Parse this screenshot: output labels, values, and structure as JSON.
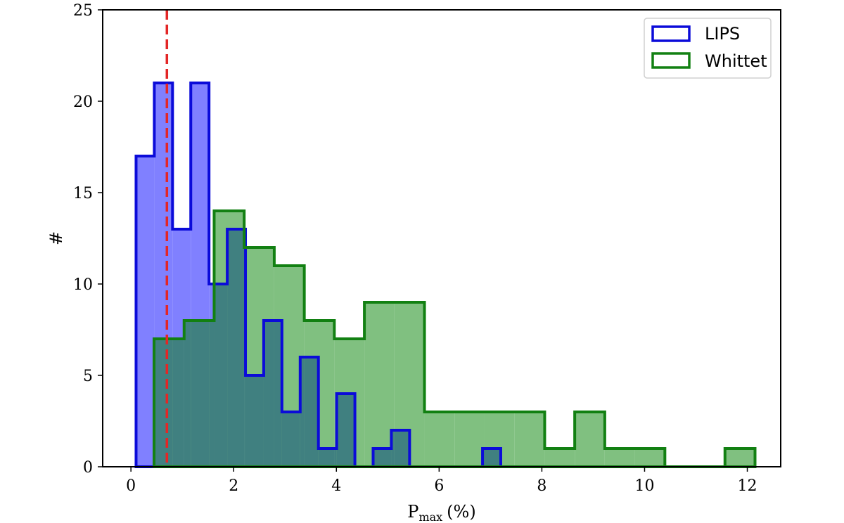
{
  "chart_data": {
    "type": "histogram",
    "xlabel": "P",
    "xlabel_sub": "max",
    "xlabel_unit": "(%)",
    "ylabel": "#",
    "xlim": [
      -0.55,
      12.65
    ],
    "ylim": [
      0,
      25
    ],
    "xticks": [
      0,
      2,
      4,
      6,
      8,
      10,
      12
    ],
    "yticks": [
      0,
      5,
      10,
      15,
      20,
      25
    ],
    "legend_position": "top-right",
    "reference_line": {
      "x": 0.7,
      "style": "dashed",
      "color": "#e32626"
    },
    "series": [
      {
        "name": "LIPS",
        "edge_color": "#0b0bd9",
        "fill_color": "#8080ff",
        "bin_edges": [
          0.1,
          0.455,
          0.81,
          1.165,
          1.52,
          1.875,
          2.23,
          2.585,
          2.94,
          3.295,
          3.65,
          4.005,
          4.36,
          4.715,
          5.07,
          5.425,
          5.78,
          6.135,
          6.49,
          6.845,
          7.2
        ],
        "counts": [
          17,
          21,
          13,
          21,
          10,
          13,
          5,
          8,
          3,
          6,
          1,
          4,
          0,
          1,
          2,
          0,
          0,
          0,
          0,
          1
        ]
      },
      {
        "name": "Whittet",
        "edge_color": "#128012",
        "fill_color": "#80c080",
        "bin_edges": [
          0.45,
          1.035,
          1.62,
          2.205,
          2.79,
          3.375,
          3.96,
          4.545,
          5.13,
          5.715,
          6.3,
          6.885,
          7.47,
          8.055,
          8.64,
          9.225,
          9.81,
          10.395,
          10.98,
          11.565,
          12.15
        ],
        "counts": [
          7,
          8,
          14,
          12,
          11,
          8,
          7,
          9,
          9,
          3,
          3,
          3,
          3,
          1,
          3,
          1,
          1,
          0,
          0,
          1
        ]
      }
    ]
  }
}
